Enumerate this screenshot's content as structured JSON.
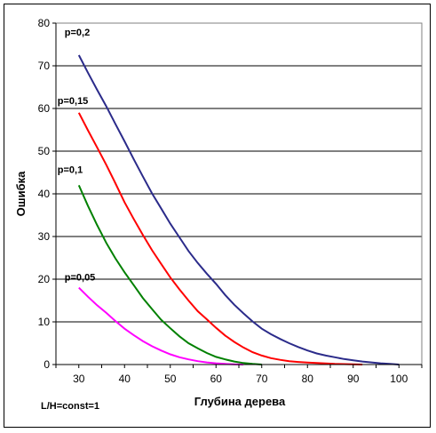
{
  "chart_data": {
    "type": "line",
    "xlabel": "Глубина дерева",
    "ylabel": "Ошибка",
    "annotation": "L/H=const=1",
    "xlim": [
      25,
      105
    ],
    "ylim": [
      0,
      80
    ],
    "x_ticks": [
      30,
      40,
      50,
      60,
      70,
      80,
      90,
      100
    ],
    "y_ticks": [
      0,
      10,
      20,
      30,
      40,
      50,
      60,
      70,
      80
    ],
    "grid": "horizontal",
    "series": [
      {
        "name": "p=0,2",
        "color": "#2b2b8a",
        "points": [
          [
            30,
            72.5
          ],
          [
            32,
            68.4
          ],
          [
            34,
            64.4
          ],
          [
            36,
            60.5
          ],
          [
            38,
            56.4
          ],
          [
            40,
            52.3
          ],
          [
            42,
            48.1
          ],
          [
            44,
            44.1
          ],
          [
            46,
            40.1
          ],
          [
            48,
            36.6
          ],
          [
            50,
            33.0
          ],
          [
            52,
            29.8
          ],
          [
            54,
            26.6
          ],
          [
            56,
            23.8
          ],
          [
            58,
            21.3
          ],
          [
            60,
            18.9
          ],
          [
            62,
            16.3
          ],
          [
            64,
            14.0
          ],
          [
            66,
            12.0
          ],
          [
            68,
            10.1
          ],
          [
            70,
            8.4
          ],
          [
            72,
            7.1
          ],
          [
            74,
            6.0
          ],
          [
            76,
            5.0
          ],
          [
            78,
            4.1
          ],
          [
            80,
            3.3
          ],
          [
            82,
            2.6
          ],
          [
            84,
            2.1
          ],
          [
            86,
            1.7
          ],
          [
            88,
            1.3
          ],
          [
            90,
            1.0
          ],
          [
            92,
            0.7
          ],
          [
            94,
            0.5
          ],
          [
            96,
            0.3
          ],
          [
            98,
            0.15
          ],
          [
            100,
            0.0
          ]
        ]
      },
      {
        "name": "p=0,15",
        "color": "#ff0000",
        "points": [
          [
            30,
            59.0
          ],
          [
            32,
            54.9
          ],
          [
            34,
            50.9
          ],
          [
            36,
            46.8
          ],
          [
            38,
            42.5
          ],
          [
            40,
            38.0
          ],
          [
            42,
            34.1
          ],
          [
            44,
            30.4
          ],
          [
            46,
            26.8
          ],
          [
            48,
            23.6
          ],
          [
            50,
            20.4
          ],
          [
            52,
            17.6
          ],
          [
            54,
            15.0
          ],
          [
            56,
            12.5
          ],
          [
            58,
            10.6
          ],
          [
            60,
            8.6
          ],
          [
            62,
            6.8
          ],
          [
            64,
            5.3
          ],
          [
            66,
            4.0
          ],
          [
            68,
            2.9
          ],
          [
            70,
            2.1
          ],
          [
            72,
            1.5
          ],
          [
            74,
            1.1
          ],
          [
            76,
            0.8
          ],
          [
            78,
            0.6
          ],
          [
            80,
            0.45
          ],
          [
            82,
            0.35
          ],
          [
            84,
            0.25
          ],
          [
            86,
            0.15
          ],
          [
            88,
            0.1
          ],
          [
            90,
            0.05
          ],
          [
            92,
            0.0
          ]
        ]
      },
      {
        "name": "p=0,1",
        "color": "#008000",
        "points": [
          [
            30,
            42.0
          ],
          [
            32,
            37.2
          ],
          [
            34,
            32.7
          ],
          [
            36,
            28.5
          ],
          [
            38,
            24.9
          ],
          [
            40,
            21.6
          ],
          [
            42,
            18.6
          ],
          [
            44,
            15.6
          ],
          [
            46,
            13.0
          ],
          [
            48,
            10.5
          ],
          [
            50,
            8.5
          ],
          [
            52,
            6.6
          ],
          [
            54,
            5.0
          ],
          [
            56,
            3.8
          ],
          [
            58,
            2.7
          ],
          [
            60,
            1.8
          ],
          [
            62,
            1.2
          ],
          [
            64,
            0.7
          ],
          [
            66,
            0.35
          ],
          [
            68,
            0.15
          ],
          [
            70,
            0.0
          ]
        ]
      },
      {
        "name": "p=0,05",
        "color": "#ff00ff",
        "points": [
          [
            30,
            18.0
          ],
          [
            32,
            15.9
          ],
          [
            34,
            13.9
          ],
          [
            36,
            12.1
          ],
          [
            38,
            10.2
          ],
          [
            40,
            8.4
          ],
          [
            42,
            6.9
          ],
          [
            44,
            5.5
          ],
          [
            46,
            4.3
          ],
          [
            48,
            3.3
          ],
          [
            50,
            2.4
          ],
          [
            52,
            1.7
          ],
          [
            54,
            1.2
          ],
          [
            56,
            0.8
          ],
          [
            58,
            0.5
          ],
          [
            60,
            0.3
          ],
          [
            62,
            0.15
          ],
          [
            64,
            0.05
          ],
          [
            66,
            0.0
          ]
        ]
      }
    ]
  }
}
